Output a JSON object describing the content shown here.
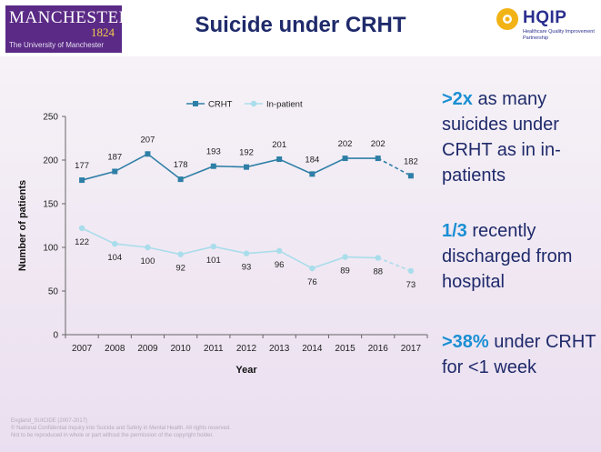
{
  "header": {
    "logo_name": "MANCHESTER",
    "logo_year": "1824",
    "logo_subtitle": "The University of Manchester",
    "title": "Suicide under CRHT",
    "hqip_name": "HQIP",
    "hqip_subtitle": "Healthcare Quality Improvement Partnership"
  },
  "chart_data": {
    "type": "line",
    "title": "",
    "xlabel": "Year",
    "ylabel": "Number of patients",
    "ylim": [
      0,
      250
    ],
    "yticks": [
      0,
      50,
      100,
      150,
      200,
      250
    ],
    "categories": [
      "2007",
      "2008",
      "2009",
      "2010",
      "2011",
      "2012",
      "2013",
      "2014",
      "2015",
      "2016",
      "2017"
    ],
    "legend_position": "top",
    "grid": false,
    "projected_from_index": 9,
    "series": [
      {
        "name": "CRHT",
        "color": "#2e7fa6",
        "values": [
          177,
          187,
          207,
          178,
          193,
          192,
          201,
          184,
          202,
          202,
          182
        ]
      },
      {
        "name": "In-patient",
        "color": "#a9ddeb",
        "values": [
          122,
          104,
          100,
          92,
          101,
          93,
          96,
          76,
          89,
          88,
          73
        ]
      }
    ]
  },
  "callouts": [
    {
      "highlight": ">2x",
      "text": " as many suicides under CRHT as in in-patients"
    },
    {
      "highlight": "1/3",
      "text": " recently discharged from hospital"
    },
    {
      "highlight": ">38%",
      "text": " under CRHT for <1 week"
    }
  ],
  "footer": {
    "line1": "England_SUICIDE (2007-2017)",
    "line2": "© National Confidential Inquiry into Suicide and Safety in Mental Health. All rights reserved.",
    "line3": "Not to be reproduced in whole or part without the permission of the copyright holder."
  }
}
